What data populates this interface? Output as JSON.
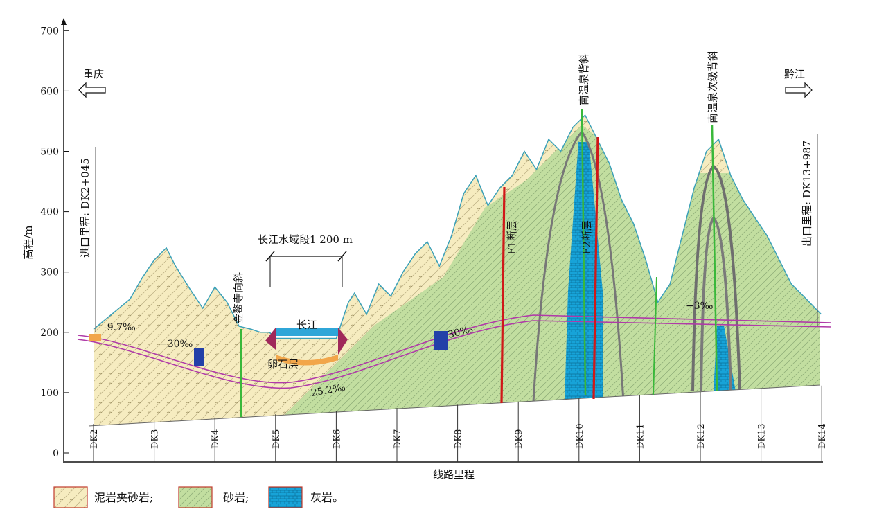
{
  "figure": {
    "y_axis": {
      "title": "高程/m",
      "min": 0,
      "max": 700,
      "ticks": [
        "0",
        "100",
        "200",
        "300",
        "400",
        "500",
        "600",
        "700"
      ]
    },
    "x_axis": {
      "title": "线路里程",
      "stations": [
        "DK2",
        "DK3",
        "DK4",
        "DK5",
        "DK6",
        "DK7",
        "DK8",
        "DK9",
        "DK10",
        "DK11",
        "DK12",
        "DK13",
        "DK14"
      ]
    },
    "directions": {
      "left": "重庆",
      "right": "黔江"
    },
    "portals": {
      "entrance": "进口里程: DK2+045",
      "exit": "出口里程: DK13+987"
    },
    "structures": {
      "syncline": "金鳌寺向斜",
      "anticline_1": "南温泉背斜",
      "anticline_2": "南温泉次级背斜",
      "fault_1": "F1断层",
      "fault_2": "F2断层"
    },
    "river": {
      "name": "长江",
      "span_label": "长江水域段1 200 m",
      "boulder_layer": "卵石层"
    },
    "gradients": [
      "-9.7‰",
      "−30‰",
      "25.2‰",
      "30‰",
      "−3‰"
    ],
    "terrain_profile": {
      "chainage_km": [
        2.0,
        2.3,
        2.6,
        2.8,
        3.0,
        3.2,
        3.35,
        3.6,
        3.8,
        4.0,
        4.2,
        4.4,
        4.6,
        4.75,
        4.9,
        5.0,
        5.5,
        6.0,
        6.2,
        6.3,
        6.5,
        6.7,
        6.9,
        7.1,
        7.3,
        7.5,
        7.7,
        7.9,
        8.1,
        8.3,
        8.5,
        8.7,
        8.9,
        9.1,
        9.3,
        9.5,
        9.7,
        9.9,
        10.1,
        10.3,
        10.5,
        10.7,
        10.9,
        11.1,
        11.3,
        11.5,
        11.7,
        11.9,
        12.1,
        12.3,
        12.5,
        12.7,
        12.9,
        13.1,
        13.3,
        13.5,
        13.7,
        13.99
      ],
      "elevation_m": [
        205,
        230,
        255,
        290,
        320,
        340,
        310,
        270,
        240,
        275,
        250,
        210,
        205,
        200,
        200,
        190,
        190,
        190,
        250,
        265,
        230,
        280,
        260,
        300,
        330,
        350,
        310,
        360,
        430,
        460,
        410,
        440,
        460,
        500,
        470,
        520,
        500,
        540,
        560,
        520,
        480,
        420,
        380,
        320,
        250,
        280,
        360,
        440,
        500,
        520,
        460,
        420,
        390,
        360,
        320,
        280,
        260,
        230
      ]
    },
    "legend": [
      {
        "label": "泥岩夹砂岩;",
        "color": "#fbf3cf",
        "pattern": "mudstone"
      },
      {
        "label": "砂岩;",
        "color": "#cfe3a8",
        "pattern": "sandstone"
      },
      {
        "label": "灰岩。",
        "color": "#1aa0d6",
        "pattern": "limestone"
      }
    ],
    "colors": {
      "mudstone": "#f6ecc0",
      "sandstone": "#c2dea0",
      "limestone": "#17a3d8",
      "tunnel": "#b03aa8",
      "fault": "#d01818",
      "axis_line": "#39b83a",
      "water": "#2fa6d8"
    }
  }
}
